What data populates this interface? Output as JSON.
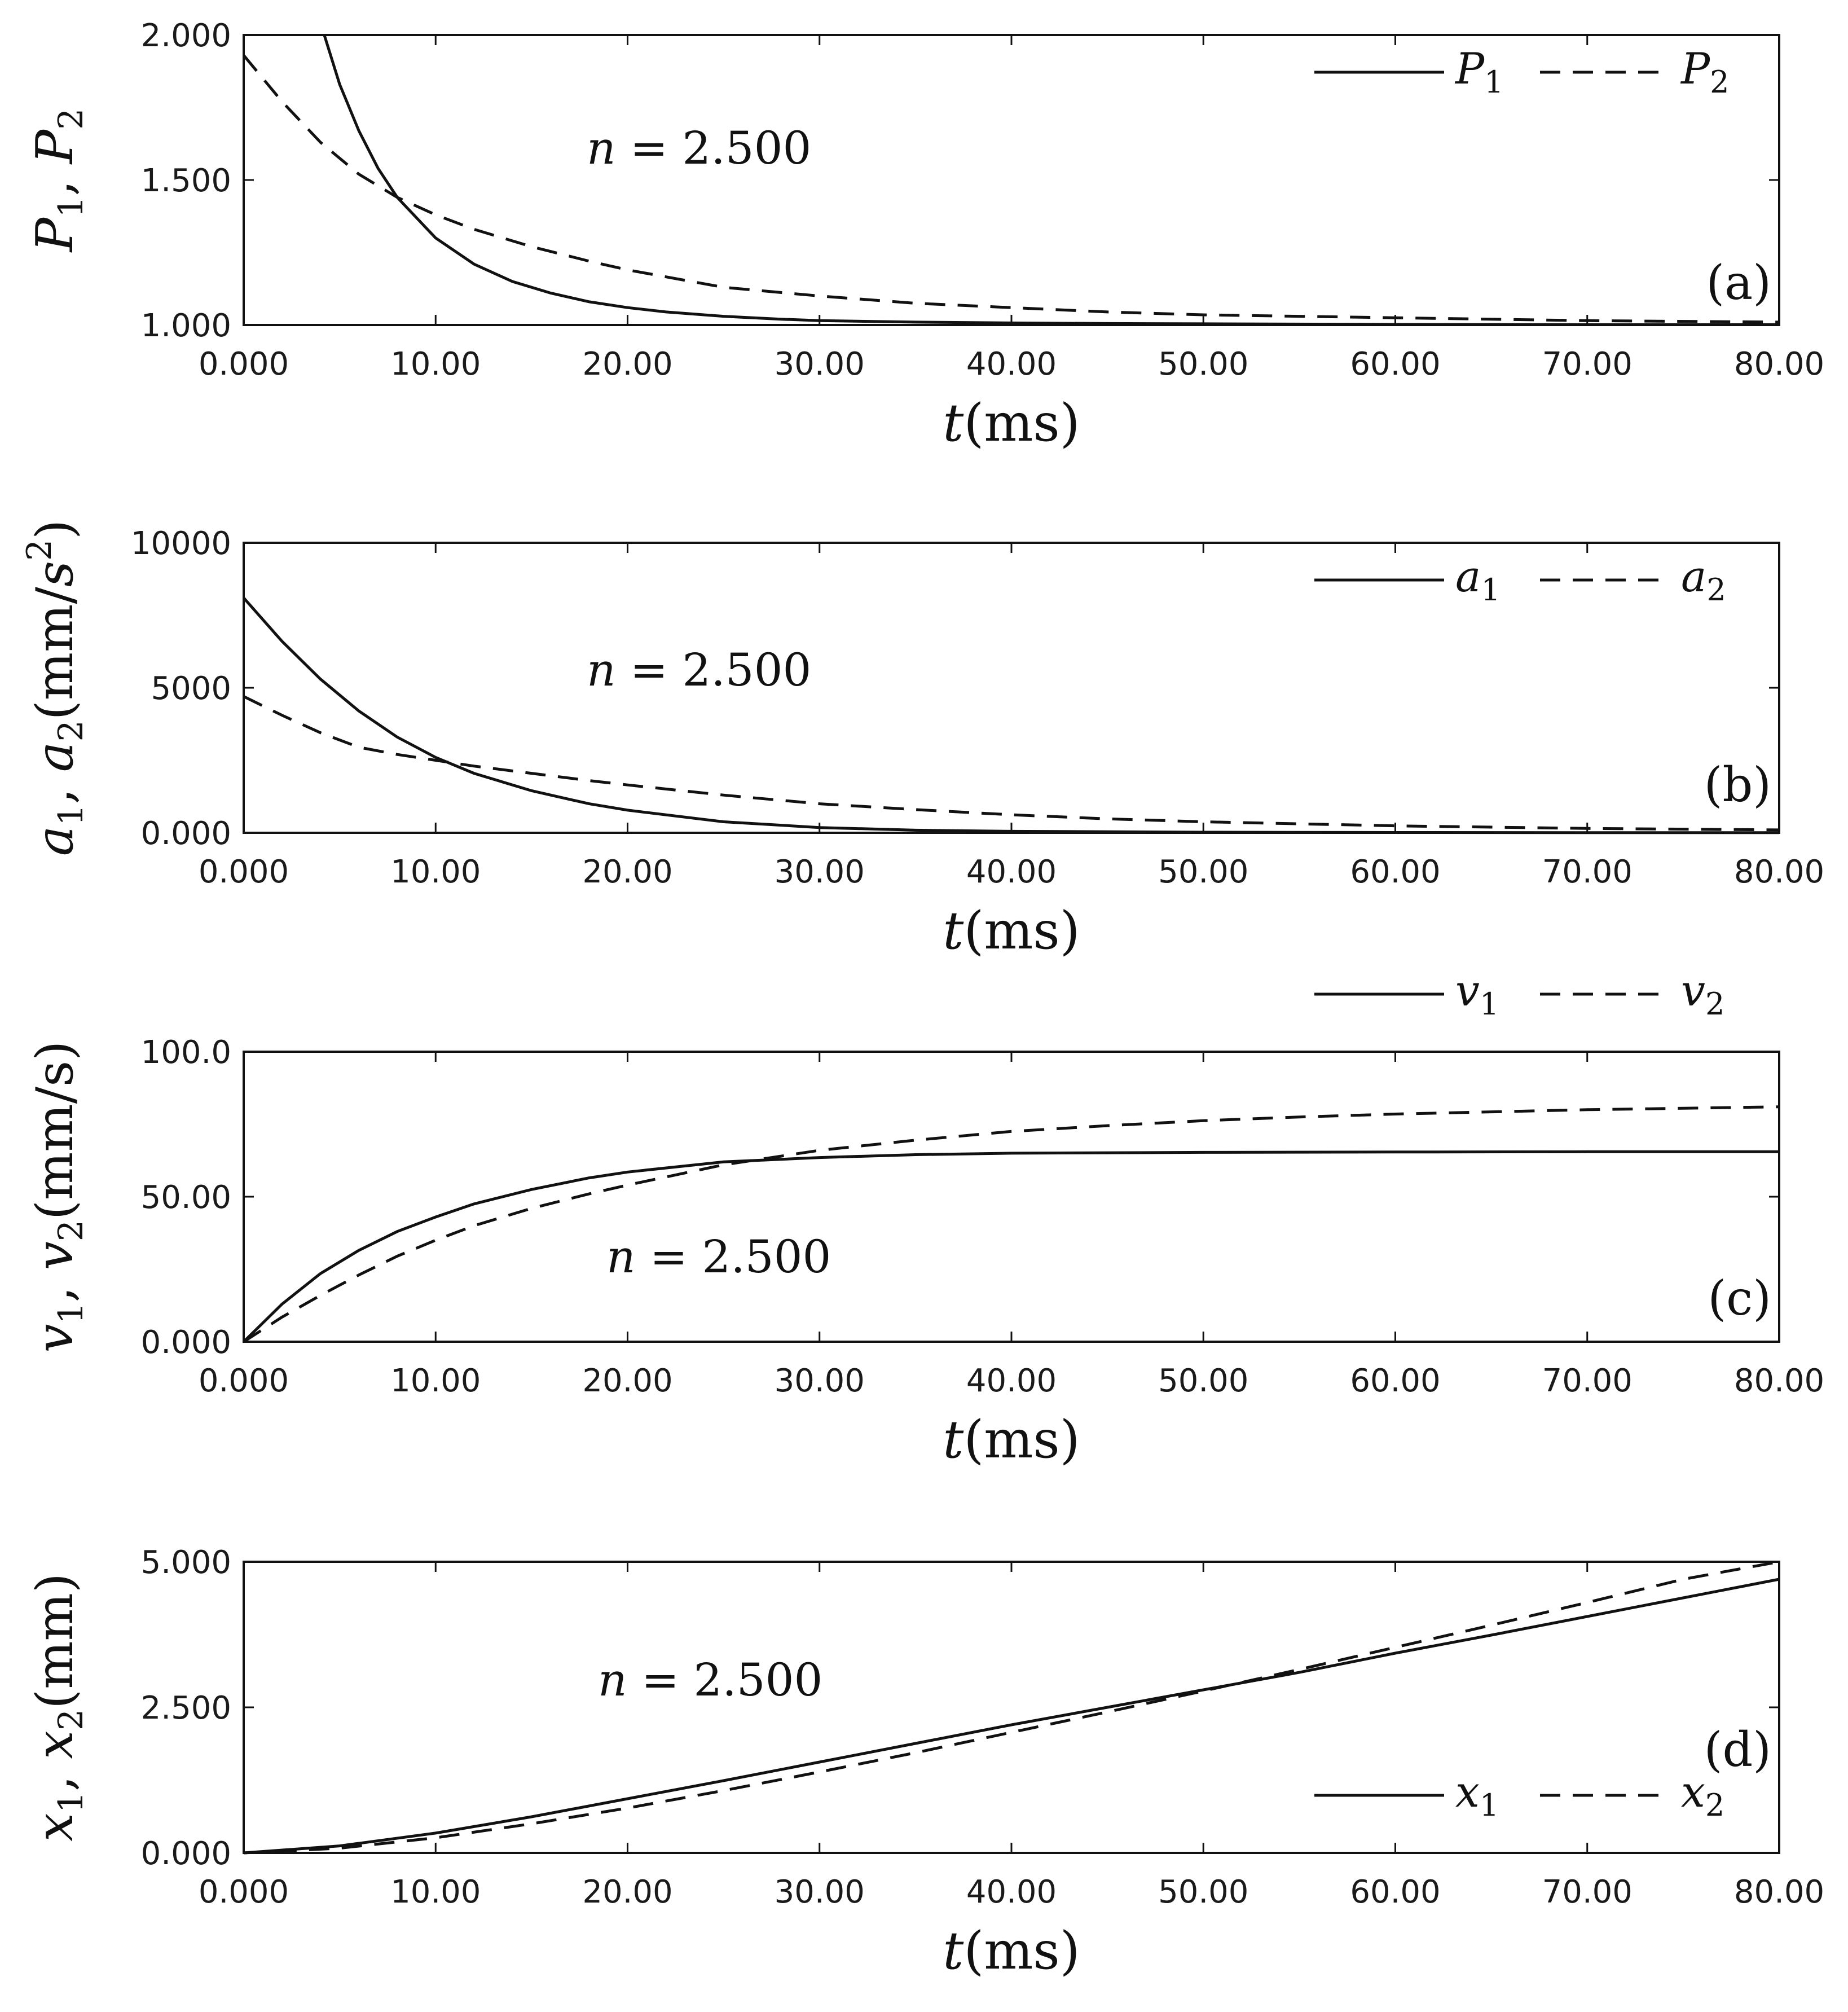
{
  "chart_data": [
    {
      "type": "line",
      "panel_label": "(a)",
      "annotation": {
        "var": "n",
        "op": " = ",
        "value": "2.500"
      },
      "xlim": [
        0,
        80
      ],
      "ylim": [
        1.0,
        2.0
      ],
      "xticks": [
        "0.000",
        "10.00",
        "20.00",
        "30.00",
        "40.00",
        "50.00",
        "60.00",
        "70.00",
        "80.00"
      ],
      "yticks": [
        "1.000",
        "1.500",
        "2.000"
      ],
      "xlabel": {
        "var": "t",
        "unit": "(ms)"
      },
      "ylabel": [
        {
          "t": "P"
        },
        {
          "t": "1",
          "sub": true
        },
        {
          "t": ", "
        },
        {
          "t": "P"
        },
        {
          "t": "2",
          "sub": true
        }
      ],
      "legend": {
        "position": "top-right",
        "entries": [
          {
            "base": "P",
            "sub": "1",
            "style": "solid"
          },
          {
            "base": "P",
            "sub": "2",
            "style": "dashed"
          }
        ]
      },
      "series": [
        {
          "style": "solid",
          "x": [
            4.2,
            5,
            6,
            7,
            8,
            9,
            10,
            12,
            14,
            16,
            18,
            20,
            22,
            25,
            28,
            30,
            35,
            40,
            45,
            50,
            60,
            70,
            80
          ],
          "y": [
            2.0,
            1.83,
            1.67,
            1.54,
            1.44,
            1.37,
            1.3,
            1.21,
            1.15,
            1.11,
            1.08,
            1.06,
            1.045,
            1.03,
            1.02,
            1.015,
            1.01,
            1.007,
            1.005,
            1.004,
            1.002,
            1.001,
            1.001
          ]
        },
        {
          "style": "dashed",
          "x": [
            0,
            2,
            4,
            6,
            8,
            10,
            12,
            15,
            18,
            20,
            25,
            30,
            35,
            40,
            45,
            50,
            55,
            60,
            70,
            80
          ],
          "y": [
            1.93,
            1.77,
            1.63,
            1.52,
            1.44,
            1.38,
            1.33,
            1.27,
            1.22,
            1.19,
            1.13,
            1.1,
            1.075,
            1.06,
            1.045,
            1.035,
            1.03,
            1.025,
            1.015,
            1.01
          ]
        }
      ]
    },
    {
      "type": "line",
      "panel_label": "(b)",
      "annotation": {
        "var": "n",
        "op": " = ",
        "value": "2.500"
      },
      "xlim": [
        0,
        80
      ],
      "ylim": [
        0,
        10000
      ],
      "xticks": [
        "0.000",
        "10.00",
        "20.00",
        "30.00",
        "40.00",
        "50.00",
        "60.00",
        "70.00",
        "80.00"
      ],
      "yticks": [
        "0.000",
        "5000",
        "10000"
      ],
      "xlabel": {
        "var": "t",
        "unit": "(ms)"
      },
      "ylabel": [
        {
          "t": "a"
        },
        {
          "t": "1",
          "sub": true
        },
        {
          "t": ", "
        },
        {
          "t": "a"
        },
        {
          "t": "2",
          "sub": true
        },
        {
          "t": "(mm/"
        },
        {
          "t": "s"
        },
        {
          "t": "2",
          "sup": true
        },
        {
          "t": ")"
        }
      ],
      "legend": {
        "position": "top-right",
        "entries": [
          {
            "base": "a",
            "sub": "1",
            "style": "solid"
          },
          {
            "base": "a",
            "sub": "2",
            "style": "dashed"
          }
        ]
      },
      "series": [
        {
          "style": "solid",
          "x": [
            0,
            2,
            4,
            6,
            8,
            10,
            12,
            15,
            18,
            20,
            25,
            30,
            35,
            40,
            50,
            60,
            70,
            80
          ],
          "y": [
            8100,
            6600,
            5300,
            4200,
            3300,
            2600,
            2050,
            1450,
            1000,
            780,
            380,
            180,
            90,
            50,
            20,
            10,
            5,
            3
          ]
        },
        {
          "style": "dashed",
          "x": [
            0,
            2,
            4,
            6,
            8,
            10,
            12,
            15,
            18,
            20,
            25,
            30,
            35,
            40,
            45,
            50,
            60,
            70,
            80
          ],
          "y": [
            4700,
            4050,
            3450,
            2950,
            2700,
            2500,
            2300,
            2050,
            1800,
            1650,
            1300,
            1000,
            800,
            620,
            480,
            380,
            240,
            150,
            100
          ]
        }
      ]
    },
    {
      "type": "line",
      "panel_label": "(c)",
      "annotation": {
        "var": "n",
        "op": " = ",
        "value": "2.500"
      },
      "xlim": [
        0,
        80
      ],
      "ylim": [
        0,
        100
      ],
      "xticks": [
        "0.000",
        "10.00",
        "20.00",
        "30.00",
        "40.00",
        "50.00",
        "60.00",
        "70.00",
        "80.00"
      ],
      "yticks": [
        "0.000",
        "50.00",
        "100.0"
      ],
      "xlabel": {
        "var": "t",
        "unit": "(ms)"
      },
      "ylabel": [
        {
          "t": "v"
        },
        {
          "t": "1",
          "sub": true
        },
        {
          "t": ", "
        },
        {
          "t": "v"
        },
        {
          "t": "2",
          "sub": true
        },
        {
          "t": "(mm/s)"
        }
      ],
      "legend": {
        "position": "above-right",
        "entries": [
          {
            "base": "v",
            "sub": "1",
            "style": "solid"
          },
          {
            "base": "v",
            "sub": "2",
            "style": "dashed"
          }
        ]
      },
      "series": [
        {
          "style": "solid",
          "x": [
            0,
            2,
            4,
            6,
            8,
            10,
            12,
            15,
            18,
            20,
            25,
            30,
            35,
            40,
            50,
            60,
            70,
            80
          ],
          "y": [
            0,
            13,
            23.5,
            31.5,
            38,
            43,
            47.5,
            52.5,
            56.5,
            58.5,
            62,
            63.5,
            64.5,
            65,
            65.3,
            65.4,
            65.5,
            65.5
          ]
        },
        {
          "style": "dashed",
          "x": [
            0,
            2,
            4,
            6,
            8,
            10,
            12,
            15,
            18,
            20,
            25,
            30,
            35,
            40,
            45,
            50,
            55,
            60,
            70,
            80
          ],
          "y": [
            0,
            8.5,
            16,
            23,
            29.5,
            35,
            40,
            46,
            51,
            54,
            61,
            66,
            69.5,
            72.5,
            74.5,
            76.2,
            77.5,
            78.5,
            80,
            81
          ]
        }
      ]
    },
    {
      "type": "line",
      "panel_label": "(d)",
      "annotation": {
        "var": "n",
        "op": " = ",
        "value": "2.500"
      },
      "xlim": [
        0,
        80
      ],
      "ylim": [
        0,
        5
      ],
      "xticks": [
        "0.000",
        "10.00",
        "20.00",
        "30.00",
        "40.00",
        "50.00",
        "60.00",
        "70.00",
        "80.00"
      ],
      "yticks": [
        "0.000",
        "2.500",
        "5.000"
      ],
      "xlabel": {
        "var": "t",
        "unit": "(ms)"
      },
      "ylabel": [
        {
          "t": "x"
        },
        {
          "t": "1",
          "sub": true
        },
        {
          "t": ", "
        },
        {
          "t": "x"
        },
        {
          "t": "2",
          "sub": true
        },
        {
          "t": "(mm)"
        }
      ],
      "legend": {
        "position": "bottom-right",
        "entries": [
          {
            "base": "x",
            "sub": "1",
            "style": "solid"
          },
          {
            "base": "x",
            "sub": "2",
            "style": "dashed"
          }
        ]
      },
      "series": [
        {
          "style": "solid",
          "x": [
            0,
            5,
            10,
            15,
            20,
            25,
            30,
            35,
            40,
            45,
            50,
            55,
            60,
            65,
            70,
            75,
            80
          ],
          "y": [
            0,
            0.12,
            0.34,
            0.62,
            0.93,
            1.24,
            1.56,
            1.88,
            2.2,
            2.5,
            2.8,
            3.1,
            3.43,
            3.74,
            4.06,
            4.38,
            4.7
          ]
        },
        {
          "style": "dashed",
          "x": [
            0,
            5,
            10,
            15,
            20,
            25,
            30,
            35,
            40,
            45,
            50,
            55,
            60,
            65,
            70,
            75,
            80
          ],
          "y": [
            0,
            0.08,
            0.26,
            0.5,
            0.77,
            1.07,
            1.39,
            1.72,
            2.07,
            2.42,
            2.78,
            3.15,
            3.53,
            3.91,
            4.3,
            4.7,
            5.1
          ]
        }
      ]
    }
  ]
}
